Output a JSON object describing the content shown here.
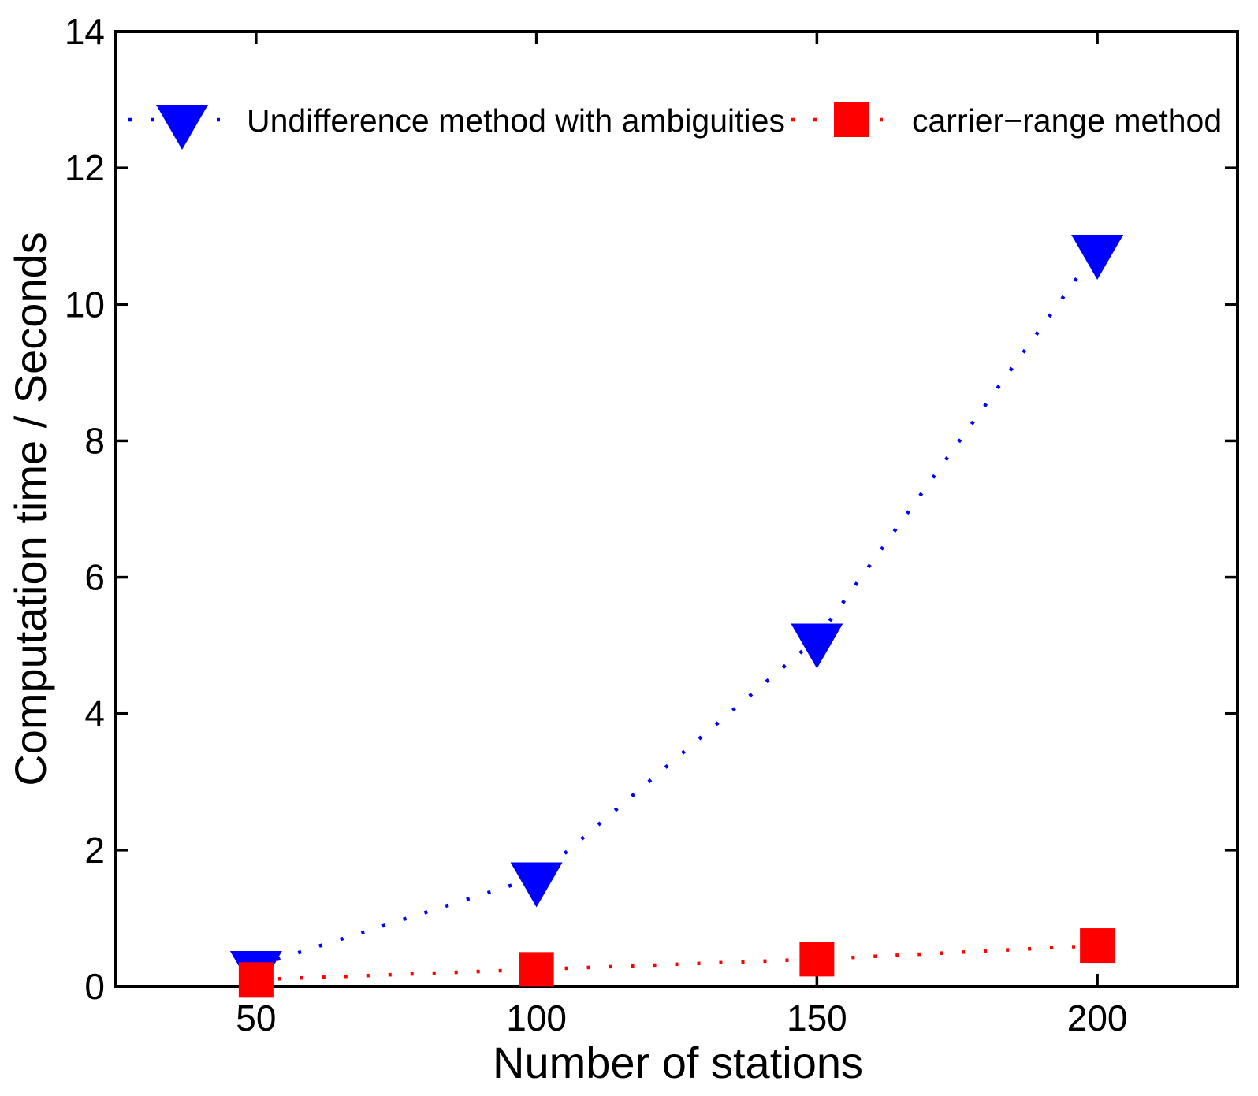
{
  "chart_data": {
    "type": "scatter",
    "title": "",
    "xlabel": "Number of stations",
    "ylabel": "Computation time / Seconds",
    "xlim": [
      25,
      225
    ],
    "ylim": [
      0,
      14
    ],
    "x_ticks": [
      50,
      100,
      150,
      200
    ],
    "y_ticks": [
      0,
      2,
      4,
      6,
      8,
      10,
      12,
      14
    ],
    "grid": false,
    "line_style": "dotted",
    "legend_position": "top-inside, no box",
    "axis_color": "#000000",
    "series": [
      {
        "name": "Undifference method with ambiguities",
        "color": "#0000ff",
        "marker": "triangle-down",
        "x": [
          50,
          100,
          150,
          200
        ],
        "y": [
          0.3,
          1.6,
          5.1,
          10.8
        ]
      },
      {
        "name": "carrier−range method",
        "color": "#ff0000",
        "marker": "square",
        "x": [
          50,
          100,
          150,
          200
        ],
        "y": [
          0.1,
          0.25,
          0.4,
          0.6
        ]
      }
    ]
  }
}
